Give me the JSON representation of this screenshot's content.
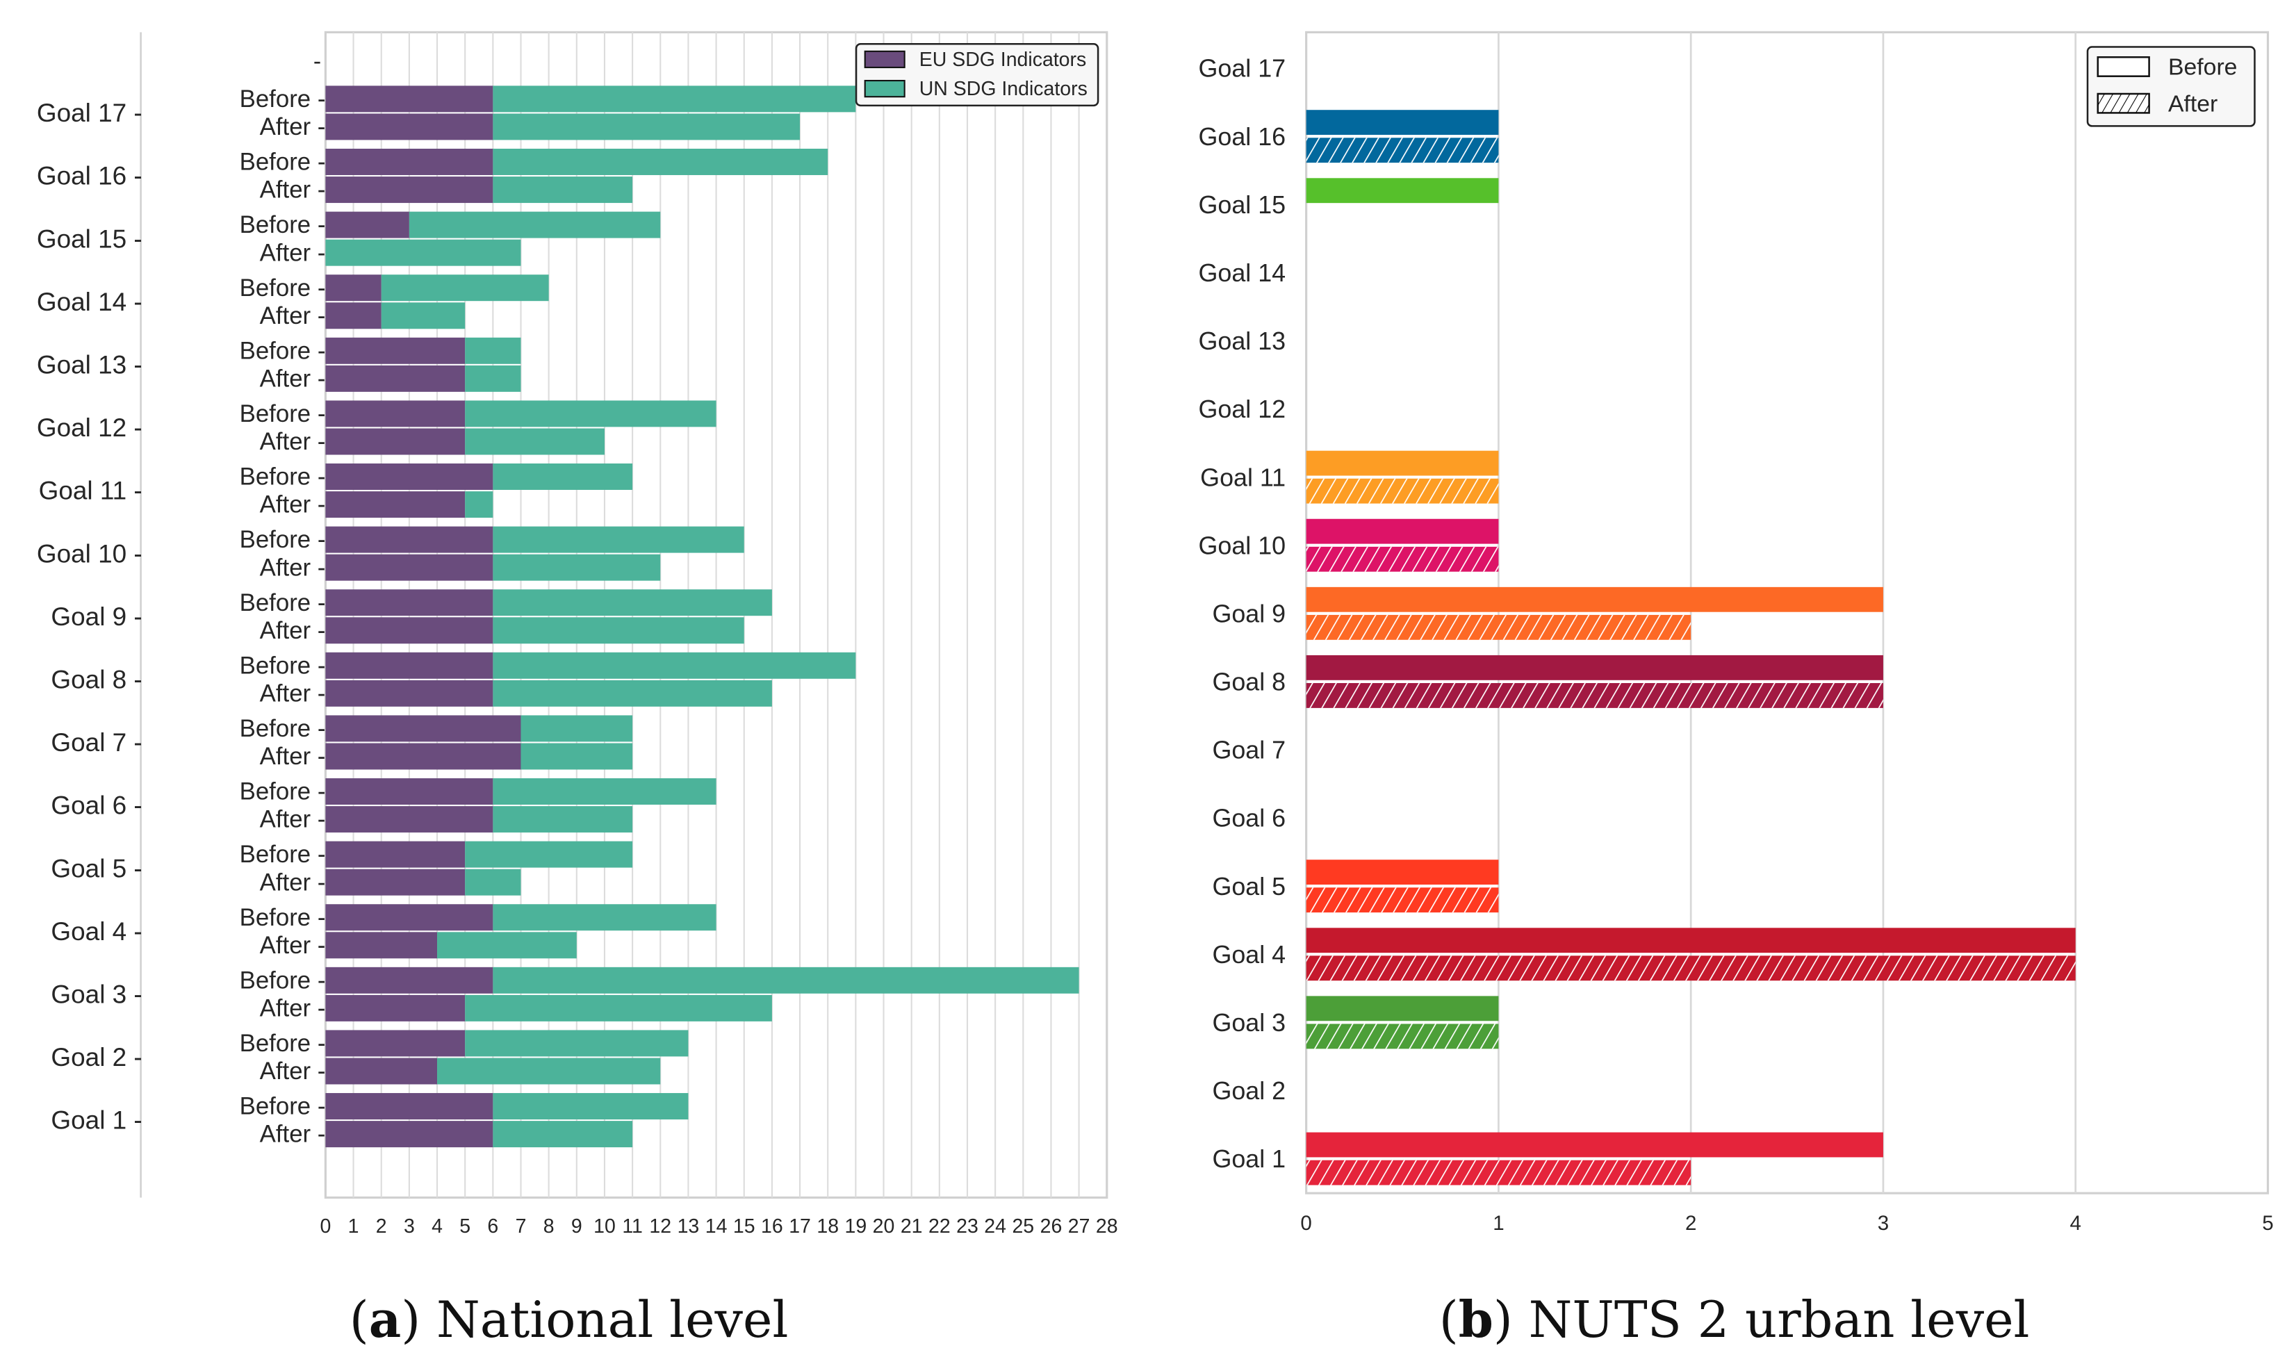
{
  "chart_data": [
    {
      "type": "bar",
      "orientation": "horizontal-stacked",
      "caption_label": "a",
      "caption_text": " National level",
      "goals": [
        "Goal 17",
        "Goal 16",
        "Goal 15",
        "Goal 14",
        "Goal 13",
        "Goal 12",
        "Goal 11",
        "Goal 10",
        "Goal 9",
        "Goal 8",
        "Goal 7",
        "Goal 6",
        "Goal 5",
        "Goal 4",
        "Goal 3",
        "Goal 2",
        "Goal 1"
      ],
      "subcategories": [
        "Before",
        "After"
      ],
      "series": [
        {
          "name": "EU SDG Indicators",
          "color": "#6a4c7d",
          "before": [
            6,
            6,
            3,
            2,
            5,
            5,
            6,
            6,
            6,
            6,
            7,
            6,
            5,
            6,
            6,
            5,
            6
          ],
          "after": [
            6,
            6,
            0,
            2,
            5,
            5,
            5,
            6,
            6,
            6,
            7,
            6,
            5,
            4,
            5,
            4,
            6
          ]
        },
        {
          "name": "UN SDG Indicators",
          "color": "#4cb39a",
          "before": [
            13,
            12,
            9,
            6,
            2,
            9,
            5,
            9,
            10,
            13,
            4,
            8,
            6,
            8,
            21,
            8,
            7
          ],
          "after": [
            11,
            5,
            7,
            3,
            2,
            5,
            1,
            6,
            9,
            10,
            4,
            5,
            2,
            5,
            11,
            8,
            5
          ]
        }
      ],
      "xlim": [
        0,
        28
      ],
      "xticks": [
        0,
        1,
        2,
        3,
        4,
        5,
        6,
        7,
        8,
        9,
        10,
        11,
        12,
        13,
        14,
        15,
        16,
        17,
        18,
        19,
        20,
        21,
        22,
        23,
        24,
        25,
        26,
        27,
        28
      ],
      "grid": true,
      "legend": "top-right"
    },
    {
      "type": "bar",
      "orientation": "horizontal-grouped",
      "caption_label": "b",
      "caption_text": " NUTS 2 urban level",
      "goals": [
        "Goal 17",
        "Goal 16",
        "Goal 15",
        "Goal 14",
        "Goal 13",
        "Goal 12",
        "Goal 11",
        "Goal 10",
        "Goal 9",
        "Goal 8",
        "Goal 7",
        "Goal 6",
        "Goal 5",
        "Goal 4",
        "Goal 3",
        "Goal 2",
        "Goal 1"
      ],
      "colors": [
        "#19486a",
        "#02689d",
        "#56c02b",
        "#0a97d9",
        "#3f7e44",
        "#bf8b2e",
        "#fd9d24",
        "#dd1367",
        "#fd6925",
        "#a21942",
        "#fcc30b",
        "#26bde2",
        "#ff3a21",
        "#c5192d",
        "#4c9f38",
        "#dda63a",
        "#e5243b"
      ],
      "series": [
        {
          "name": "Before",
          "values": [
            0,
            1,
            1,
            0,
            0,
            0,
            1,
            1,
            3,
            3,
            0,
            0,
            1,
            4,
            1,
            0,
            3
          ]
        },
        {
          "name": "After",
          "values": [
            0,
            1,
            0,
            0,
            0,
            0,
            1,
            1,
            2,
            3,
            0,
            0,
            1,
            4,
            1,
            0,
            2
          ]
        }
      ],
      "xlim": [
        0,
        5
      ],
      "xticks": [
        0,
        1,
        2,
        3,
        4,
        5
      ],
      "grid": true,
      "legend": "top-right"
    }
  ]
}
